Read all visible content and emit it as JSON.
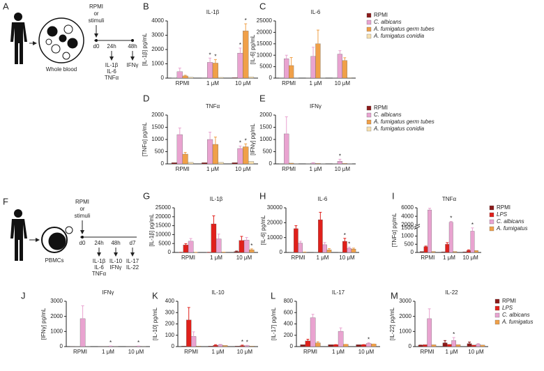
{
  "diagrams": {
    "a": {
      "panel": "A",
      "condition": [
        "RPMI",
        "or",
        "stimuli"
      ],
      "start": "d0",
      "sample": "Whole blood",
      "steps": [
        {
          "time": "24h",
          "readouts": [
            "IL-1β",
            "IL-6",
            "TNFα"
          ]
        },
        {
          "time": "48h",
          "readouts": [
            "IFNγ"
          ]
        }
      ]
    },
    "f": {
      "panel": "F",
      "condition": [
        "RPMI",
        "or",
        "stimuli"
      ],
      "start": "d0",
      "sample": "PBMCs",
      "steps": [
        {
          "time": "24h",
          "readouts": [
            "IL-1β",
            "IL-6",
            "TNFα"
          ]
        },
        {
          "time": "48h",
          "readouts": [
            "IL-10",
            "IFNγ"
          ]
        },
        {
          "time": "d7",
          "readouts": [
            "IL-17",
            "IL-22"
          ]
        }
      ]
    }
  },
  "chart_data": [
    {
      "type": "bar",
      "panel": "B",
      "title": "IL-1β",
      "y_label": "[IL-1β] pg/mL",
      "categories": [
        "RPMI",
        "1 μM",
        "10 μM"
      ],
      "ylim": [
        0,
        4000
      ],
      "yticks": [
        0,
        1000,
        2000,
        3000,
        4000
      ],
      "legend": false,
      "series": [
        {
          "name": "RPMI",
          "color": "#8b1a1a",
          "values": [
            10,
            20,
            30
          ]
        },
        {
          "name": "C. albicans",
          "color": "#e9a3d0",
          "values": [
            450,
            1100,
            1750
          ],
          "errors": [
            250,
            300,
            350
          ],
          "sig": [
            null,
            "*",
            "*"
          ]
        },
        {
          "name": "A. fumigatus germ tubes",
          "color": "#f0a048",
          "values": [
            150,
            1050,
            3300
          ],
          "errors": [
            50,
            250,
            500
          ],
          "sig": [
            null,
            "*",
            "*"
          ]
        },
        {
          "name": "A. fumigatus conidia",
          "color": "#f7e0b0",
          "values": [
            60,
            50,
            80
          ]
        }
      ]
    },
    {
      "type": "bar",
      "panel": "C",
      "title": "IL-6",
      "y_label": "[IL-6] pg/mL",
      "categories": [
        "RPMI",
        "1 μM",
        "10 μM"
      ],
      "ylim": [
        0,
        25000
      ],
      "yticks": [
        0,
        5000,
        10000,
        15000,
        20000,
        25000
      ],
      "legend": true,
      "series": [
        {
          "name": "RPMI",
          "color": "#8b1a1a",
          "values": [
            50,
            50,
            50
          ]
        },
        {
          "name": "C. albicans",
          "color": "#e9a3d0",
          "values": [
            8500,
            9500,
            10500
          ],
          "errors": [
            1500,
            4000,
            1500
          ]
        },
        {
          "name": "A. fumigatus germ tubes",
          "color": "#f0a048",
          "values": [
            5500,
            15000,
            7700
          ],
          "errors": [
            3500,
            6000,
            1200
          ]
        },
        {
          "name": "A. fumigatus conidia",
          "color": "#f7e0b0",
          "values": [
            100,
            100,
            200
          ]
        }
      ]
    },
    {
      "type": "bar",
      "panel": "D",
      "title": "TNFα",
      "y_label": "[TNFα] pg/mL",
      "categories": [
        "RPMI",
        "1 μM",
        "10 μM"
      ],
      "ylim": [
        0,
        2000
      ],
      "yticks": [
        0,
        500,
        1000,
        1500,
        2000
      ],
      "legend": false,
      "series": [
        {
          "name": "RPMI",
          "color": "#8b1a1a",
          "values": [
            50,
            50,
            50
          ]
        },
        {
          "name": "C. albicans",
          "color": "#e9a3d0",
          "values": [
            1200,
            1000,
            630
          ],
          "errors": [
            270,
            300,
            100
          ],
          "sig": [
            null,
            null,
            "*"
          ]
        },
        {
          "name": "A. fumigatus germ tubes",
          "color": "#f0a048",
          "values": [
            400,
            800,
            700
          ],
          "errors": [
            70,
            300,
            120
          ],
          "sig": [
            null,
            null,
            "*"
          ]
        },
        {
          "name": "A. fumigatus conidia",
          "color": "#f7e0b0",
          "values": [
            60,
            60,
            100
          ]
        }
      ]
    },
    {
      "type": "bar",
      "panel": "E",
      "title": "IFNγ",
      "y_label": "[IFNγ] pg/mL",
      "categories": [
        "RPMI",
        "1 μM",
        "10 μM"
      ],
      "ylim": [
        0,
        2000
      ],
      "yticks": [
        0,
        500,
        1000,
        1500,
        2000
      ],
      "legend": true,
      "series": [
        {
          "name": "RPMI",
          "color": "#8b1a1a",
          "values": [
            5,
            5,
            5
          ]
        },
        {
          "name": "C. albicans",
          "color": "#e9a3d0",
          "values": [
            1230,
            30,
            110
          ],
          "errors": [
            700,
            20,
            80
          ],
          "sig": [
            null,
            null,
            "*"
          ]
        },
        {
          "name": "A. fumigatus germ tubes",
          "color": "#f0a048",
          "values": [
            30,
            20,
            20
          ]
        },
        {
          "name": "A. fumigatus conidia",
          "color": "#f7e0b0",
          "values": [
            10,
            10,
            10
          ]
        }
      ]
    },
    {
      "type": "bar",
      "panel": "G",
      "title": "IL-1β",
      "y_label": "[IL-1β] pg/mL",
      "categories": [
        "RPMI",
        "1 μM",
        "10 μM"
      ],
      "ylim": [
        0,
        25000
      ],
      "yticks": [
        0,
        5000,
        10000,
        15000,
        20000,
        25000
      ],
      "legend": false,
      "series": [
        {
          "name": "RPMI",
          "color": "#8b1a1a",
          "values": [
            50,
            50,
            500
          ],
          "errors": [
            0,
            0,
            300
          ]
        },
        {
          "name": "LPS",
          "color": "#e0201b",
          "values": [
            4200,
            16000,
            6700
          ],
          "errors": [
            700,
            4500,
            2300
          ]
        },
        {
          "name": "C. albicans",
          "color": "#e9a3d0",
          "values": [
            6300,
            7600,
            6900
          ],
          "errors": [
            1500,
            2700,
            1500
          ]
        },
        {
          "name": "A. fumigatus",
          "color": "#f0a048",
          "values": [
            100,
            200,
            1500
          ],
          "errors": [
            0,
            0,
            500
          ],
          "sig": [
            null,
            null,
            "*"
          ]
        }
      ]
    },
    {
      "type": "bar",
      "panel": "H",
      "title": "IL-6",
      "y_label": "[IL-6] pg/mL",
      "categories": [
        "RPMI",
        "1 μM",
        "10 μM"
      ],
      "ylim": [
        0,
        30000
      ],
      "yticks": [
        0,
        10000,
        20000,
        30000
      ],
      "legend": false,
      "series": [
        {
          "name": "RPMI",
          "color": "#8b1a1a",
          "values": [
            50,
            50,
            50
          ]
        },
        {
          "name": "LPS",
          "color": "#e0201b",
          "values": [
            16000,
            22000,
            7500
          ],
          "errors": [
            2000,
            5000,
            2000
          ],
          "sig": [
            null,
            null,
            "*"
          ]
        },
        {
          "name": "C. albicans",
          "color": "#e9a3d0",
          "values": [
            6300,
            5200,
            2800
          ],
          "errors": [
            1200,
            1500,
            800
          ],
          "sig": [
            null,
            null,
            "*"
          ]
        },
        {
          "name": "A. fumigatus",
          "color": "#f0a048",
          "values": [
            200,
            1800,
            2300
          ],
          "errors": [
            100,
            800,
            600
          ]
        }
      ]
    },
    {
      "type": "bar",
      "panel": "I",
      "title": "TNFα",
      "y_label": "[TNFα] pg/mL",
      "categories": [
        "RPMI",
        "1 μM",
        "10 μM"
      ],
      "ylim": [
        0,
        6000
      ],
      "ybreak": [
        1500,
        2000
      ],
      "yticks": [
        0,
        500,
        1000,
        1500,
        2000,
        4000,
        6000
      ],
      "legend": true,
      "series": [
        {
          "name": "RPMI",
          "color": "#8b1a1a",
          "values": [
            60,
            40,
            40
          ]
        },
        {
          "name": "LPS",
          "color": "#e0201b",
          "values": [
            350,
            500,
            120
          ],
          "errors": [
            40,
            100,
            40
          ]
        },
        {
          "name": "C. albicans",
          "color": "#e9a3d0",
          "values": [
            5500,
            2600,
            1300
          ],
          "errors": [
            400,
            200,
            200
          ],
          "sig": [
            null,
            "*",
            "*"
          ]
        },
        {
          "name": "A. fumigatus",
          "color": "#f0a048",
          "values": [
            60,
            60,
            120
          ]
        }
      ]
    },
    {
      "type": "bar",
      "panel": "J",
      "title": "IFNγ",
      "y_label": "[IFNγ] pg/mL",
      "categories": [
        "RPMI",
        "1 μM",
        "10 μM"
      ],
      "ylim": [
        0,
        3000
      ],
      "yticks": [
        0,
        1000,
        2000,
        3000
      ],
      "legend": false,
      "series": [
        {
          "name": "RPMI",
          "color": "#8b1a1a",
          "values": [
            5,
            5,
            5
          ]
        },
        {
          "name": "LPS",
          "color": "#e0201b",
          "values": [
            10,
            5,
            5
          ]
        },
        {
          "name": "C. albicans",
          "color": "#e9a3d0",
          "values": [
            1850,
            30,
            30
          ],
          "errors": [
            850,
            10,
            10
          ],
          "sig": [
            null,
            "*",
            "*"
          ]
        },
        {
          "name": "A. fumigatus",
          "color": "#f0a048",
          "values": [
            10,
            5,
            5
          ]
        }
      ]
    },
    {
      "type": "bar",
      "panel": "K",
      "title": "IL-10",
      "y_label": "[IL-10] pg/mL",
      "categories": [
        "RPMI",
        "1 μM",
        "10 μM"
      ],
      "ylim": [
        0,
        400
      ],
      "yticks": [
        0,
        100,
        200,
        300,
        400
      ],
      "legend": false,
      "series": [
        {
          "name": "RPMI",
          "color": "#8b1a1a",
          "values": [
            5,
            5,
            5
          ]
        },
        {
          "name": "LPS",
          "color": "#e0201b",
          "values": [
            235,
            12,
            8
          ],
          "errors": [
            110,
            5,
            5
          ],
          "sig": [
            null,
            null,
            "*"
          ]
        },
        {
          "name": "C. albicans",
          "color": "#e9a3d0",
          "values": [
            90,
            15,
            8
          ],
          "errors": [
            40,
            5,
            3
          ],
          "sig": [
            null,
            null,
            "*"
          ]
        },
        {
          "name": "A. fumigatus",
          "color": "#f0a048",
          "values": [
            5,
            10,
            5
          ]
        }
      ]
    },
    {
      "type": "bar",
      "panel": "L",
      "title": "IL-17",
      "y_label": "[IL-17] pg/mL",
      "categories": [
        "RPMI",
        "1 μM",
        "10 μM"
      ],
      "ylim": [
        0,
        800
      ],
      "yticks": [
        0,
        200,
        400,
        600,
        800
      ],
      "legend": false,
      "series": [
        {
          "name": "RPMI",
          "color": "#8b1a1a",
          "values": [
            35,
            35,
            35
          ]
        },
        {
          "name": "LPS",
          "color": "#e0201b",
          "values": [
            100,
            35,
            35
          ],
          "errors": [
            30,
            0,
            0
          ]
        },
        {
          "name": "C. albicans",
          "color": "#e9a3d0",
          "values": [
            510,
            270,
            55
          ],
          "errors": [
            60,
            60,
            15
          ],
          "sig": [
            null,
            null,
            "*"
          ]
        },
        {
          "name": "A. fumigatus",
          "color": "#f0a048",
          "values": [
            65,
            40,
            45
          ],
          "errors": [
            20,
            0,
            0
          ]
        }
      ]
    },
    {
      "type": "bar",
      "panel": "M",
      "title": "IL-22",
      "y_label": "[IL-22] pg/mL",
      "categories": [
        "RPMI",
        "1 μM",
        "10 μM"
      ],
      "ylim": [
        0,
        3000
      ],
      "yticks": [
        0,
        1000,
        2000,
        3000
      ],
      "legend": true,
      "series": [
        {
          "name": "RPMI",
          "color": "#8b1a1a",
          "values": [
            100,
            250,
            200
          ],
          "errors": [
            0,
            150,
            100
          ]
        },
        {
          "name": "LPS",
          "color": "#e0201b",
          "values": [
            130,
            150,
            100
          ]
        },
        {
          "name": "C. albicans",
          "color": "#e9a3d0",
          "values": [
            1850,
            400,
            150
          ],
          "errors": [
            650,
            200,
            50
          ],
          "sig": [
            null,
            "*",
            null
          ]
        },
        {
          "name": "A. fumigatus",
          "color": "#f0a048",
          "values": [
            120,
            130,
            100
          ]
        }
      ]
    }
  ]
}
